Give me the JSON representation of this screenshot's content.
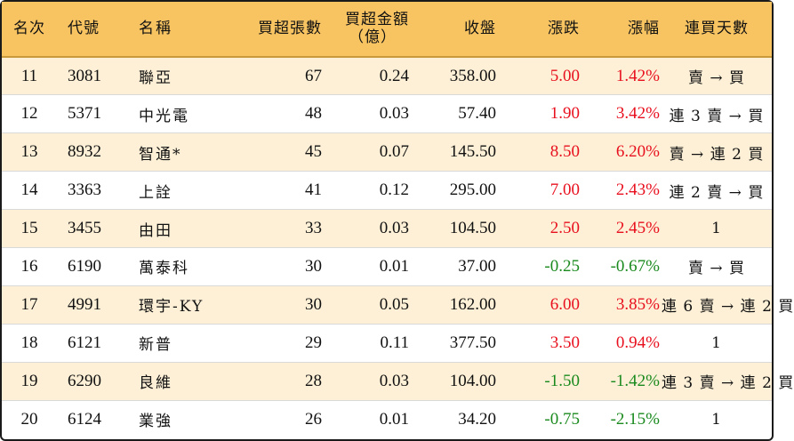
{
  "table": {
    "headers": {
      "rank": "名次",
      "code": "代號",
      "name": "名稱",
      "net_buy_lots": "買超張數",
      "net_buy_amount_line1": "買超金額",
      "net_buy_amount_line2": "（億）",
      "close": "收盤",
      "change": "漲跌",
      "change_pct": "漲幅",
      "streak": "連買天數"
    },
    "colors": {
      "header_bg": "#f8c462",
      "alt_row_bg": "#fdf0d6",
      "up": "#e8101e",
      "down": "#1a8a1e"
    },
    "rows": [
      {
        "rank": "11",
        "code": "3081",
        "name": "聯亞",
        "lots": "67",
        "amount": "0.24",
        "close": "358.00",
        "change": "5.00",
        "pct": "1.42%",
        "streak": "賣 → 買"
      },
      {
        "rank": "12",
        "code": "5371",
        "name": "中光電",
        "lots": "48",
        "amount": "0.03",
        "close": "57.40",
        "change": "1.90",
        "pct": "3.42%",
        "streak": "連 3 賣 → 買"
      },
      {
        "rank": "13",
        "code": "8932",
        "name": "智通*",
        "lots": "45",
        "amount": "0.07",
        "close": "145.50",
        "change": "8.50",
        "pct": "6.20%",
        "streak": "賣 → 連 2 買"
      },
      {
        "rank": "14",
        "code": "3363",
        "name": "上詮",
        "lots": "41",
        "amount": "0.12",
        "close": "295.00",
        "change": "7.00",
        "pct": "2.43%",
        "streak": "連 2 賣 → 買"
      },
      {
        "rank": "15",
        "code": "3455",
        "name": "由田",
        "lots": "33",
        "amount": "0.03",
        "close": "104.50",
        "change": "2.50",
        "pct": "2.45%",
        "streak": "1"
      },
      {
        "rank": "16",
        "code": "6190",
        "name": "萬泰科",
        "lots": "30",
        "amount": "0.01",
        "close": "37.00",
        "change": "-0.25",
        "pct": "-0.67%",
        "streak": "賣 → 買"
      },
      {
        "rank": "17",
        "code": "4991",
        "name": "環宇-KY",
        "lots": "30",
        "amount": "0.05",
        "close": "162.00",
        "change": "6.00",
        "pct": "3.85%",
        "streak": "連 6 賣 → 連 2 買"
      },
      {
        "rank": "18",
        "code": "6121",
        "name": "新普",
        "lots": "29",
        "amount": "0.11",
        "close": "377.50",
        "change": "3.50",
        "pct": "0.94%",
        "streak": "1"
      },
      {
        "rank": "19",
        "code": "6290",
        "name": "良維",
        "lots": "28",
        "amount": "0.03",
        "close": "104.00",
        "change": "-1.50",
        "pct": "-1.42%",
        "streak": "連 3 賣 → 連 2 買"
      },
      {
        "rank": "20",
        "code": "6124",
        "name": "業強",
        "lots": "26",
        "amount": "0.01",
        "close": "34.20",
        "change": "-0.75",
        "pct": "-2.15%",
        "streak": "1"
      }
    ]
  }
}
